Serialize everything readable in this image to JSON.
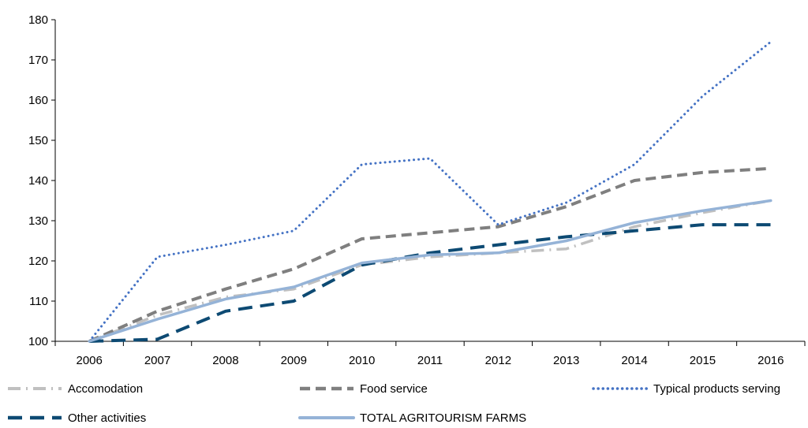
{
  "chart_data": {
    "type": "line",
    "title": "",
    "xlabel": "",
    "ylabel": "",
    "ylim": [
      100,
      180
    ],
    "yticks": [
      100,
      110,
      120,
      130,
      140,
      150,
      160,
      170,
      180
    ],
    "categories": [
      "2006",
      "2007",
      "2008",
      "2009",
      "2010",
      "2011",
      "2012",
      "2013",
      "2014",
      "2015",
      "2016"
    ],
    "grid": false,
    "legend_position": "bottom",
    "series": [
      {
        "name": "Accomodation",
        "color": "#c0c0c0",
        "style": "dash-dot",
        "values": [
          100,
          106.5,
          111,
          113,
          119,
          121,
          122,
          123,
          128.5,
          132,
          135
        ]
      },
      {
        "name": "Food service",
        "color": "#7f7f7f",
        "style": "dash",
        "values": [
          100,
          107.5,
          113,
          118,
          125.5,
          127,
          128.5,
          133.5,
          140,
          142,
          143
        ]
      },
      {
        "name": "Typical products serving",
        "color": "#4472c4",
        "style": "dot",
        "values": [
          100,
          121,
          124,
          127.5,
          144,
          145.5,
          129,
          134.5,
          144,
          161,
          174.5
        ]
      },
      {
        "name": "Other activities",
        "color": "#0d4a73",
        "style": "longdash",
        "values": [
          100,
          100.5,
          107.5,
          110,
          119,
          122,
          124,
          126,
          127.5,
          129,
          129
        ]
      },
      {
        "name": "TOTAL AGRITOURISM FARMS",
        "color": "#95b3d7",
        "style": "solid",
        "values": [
          100,
          105.5,
          110.5,
          113.5,
          119.5,
          121.5,
          122,
          125,
          129.5,
          132.5,
          135
        ]
      }
    ]
  }
}
